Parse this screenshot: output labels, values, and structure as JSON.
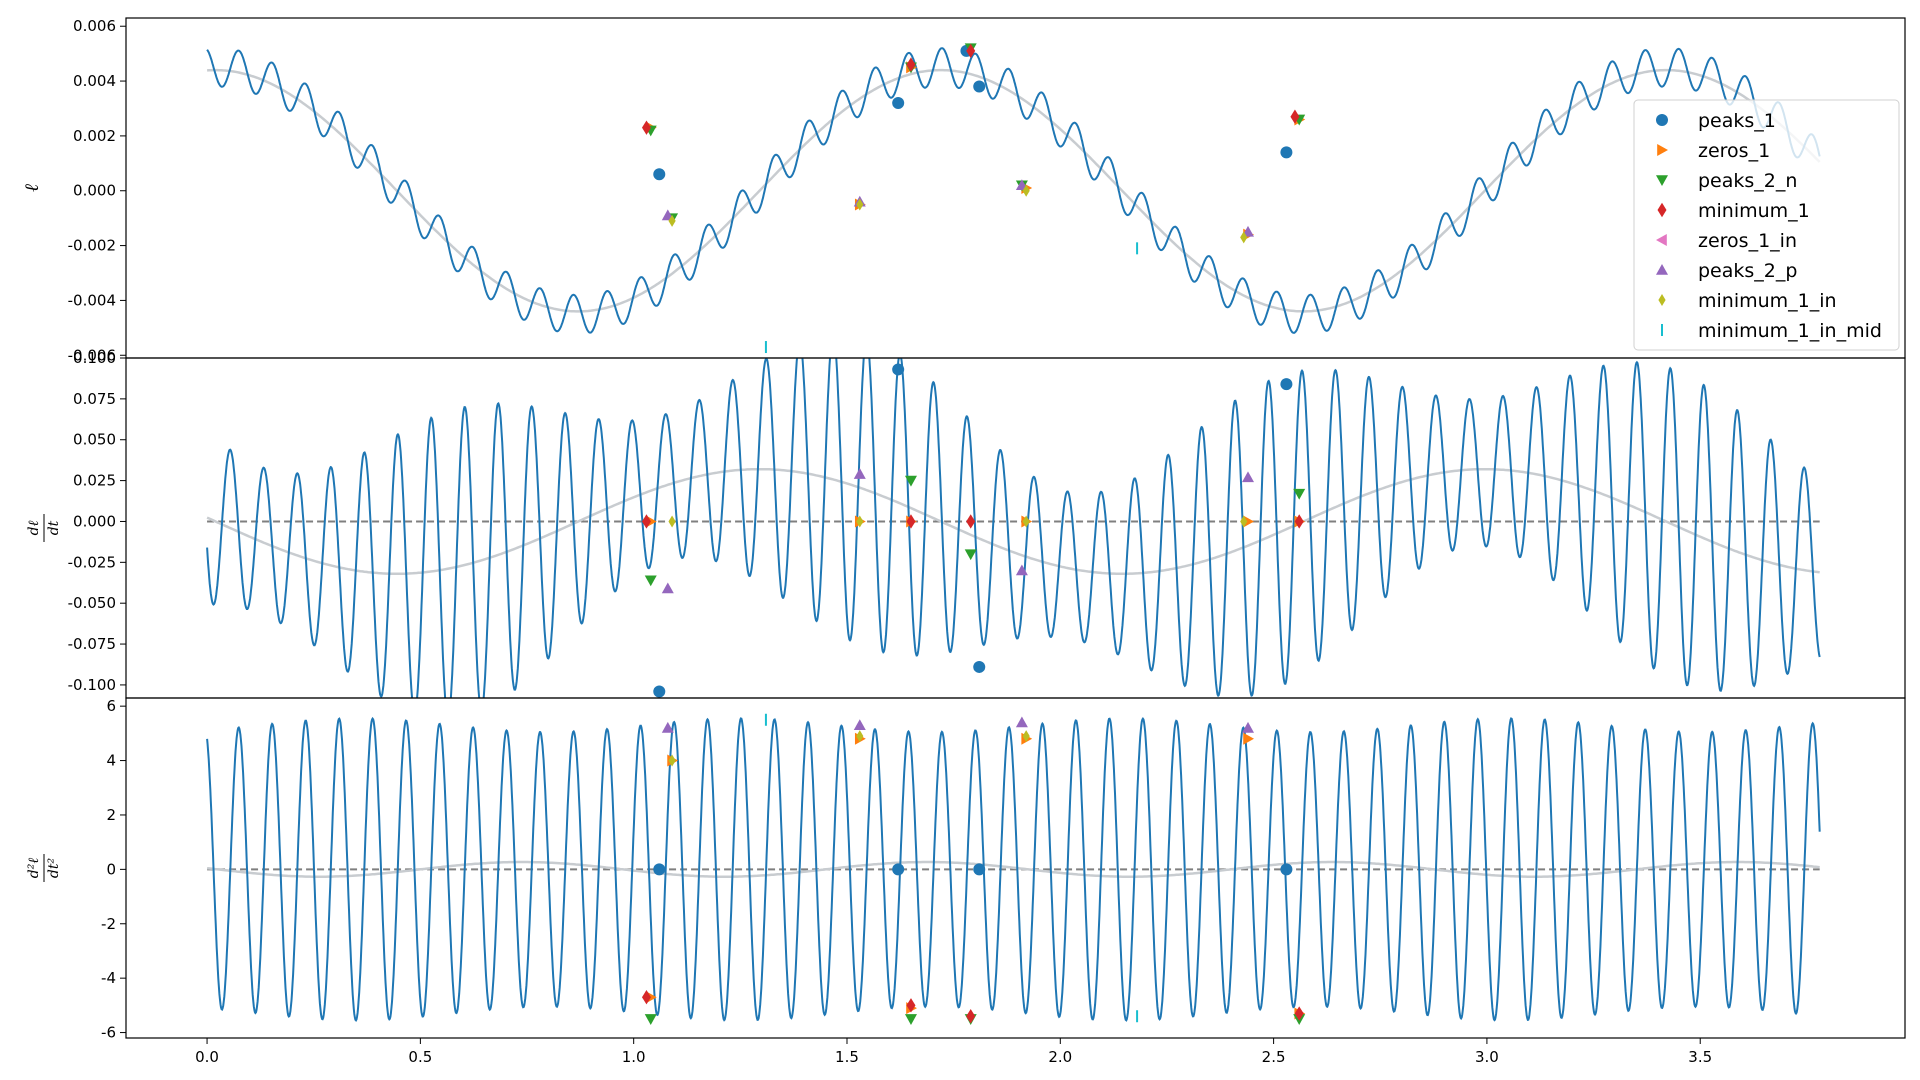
{
  "chart_data": [
    {
      "type": "line",
      "panel": "top",
      "ylabel": "ℓ",
      "xlim": [
        -0.19,
        3.98
      ],
      "ylim": [
        -0.0061,
        0.0063
      ],
      "yticks": [
        "0.006",
        "0.004",
        "0.002",
        "0.000",
        "-0.002",
        "-0.004",
        "-0.006"
      ],
      "ytick_values": [
        0.006,
        0.004,
        0.002,
        0.0,
        -0.002,
        -0.004,
        -0.006
      ],
      "series": [
        {
          "role": "signal",
          "color": "#1f77b4",
          "model": {
            "slow_amp": 0.0045,
            "slow_period": 1.7,
            "fast_amp": 0.0007,
            "fast_period": 0.0785
          }
        },
        {
          "role": "smoothed",
          "color": "#c8ccd0",
          "model": {
            "amp": 0.0044,
            "period": 1.7
          }
        }
      ],
      "markers": [
        {
          "name": "peaks_1",
          "shape": "circle",
          "color": "#1f77b4",
          "points": [
            [
              1.06,
              0.0006
            ],
            [
              1.62,
              0.0032
            ],
            [
              1.78,
              0.0051
            ],
            [
              1.81,
              0.0038
            ],
            [
              2.53,
              0.0014
            ]
          ]
        },
        {
          "name": "zeros_1",
          "shape": "triangle-right",
          "color": "#ff7f0e",
          "points": [
            [
              1.04,
              0.0023
            ],
            [
              1.53,
              -0.0005
            ],
            [
              1.65,
              0.0045
            ],
            [
              1.92,
              0.0001
            ],
            [
              2.44,
              -0.0016
            ],
            [
              2.56,
              0.0026
            ]
          ]
        },
        {
          "name": "peaks_2_n",
          "shape": "triangle-down",
          "color": "#2ca02c",
          "points": [
            [
              1.04,
              0.0022
            ],
            [
              1.09,
              -0.001
            ],
            [
              1.65,
              0.0045
            ],
            [
              1.79,
              0.0052
            ],
            [
              1.91,
              0.0002
            ],
            [
              2.56,
              0.0026
            ]
          ]
        },
        {
          "name": "minimum_1",
          "shape": "diamond",
          "color": "#d62728",
          "points": [
            [
              1.03,
              0.0023
            ],
            [
              1.65,
              0.0046
            ],
            [
              1.79,
              0.0051
            ],
            [
              2.55,
              0.0027
            ]
          ]
        },
        {
          "name": "peaks_2_p",
          "shape": "triangle-up",
          "color": "#9467bd",
          "points": [
            [
              1.08,
              -0.0009
            ],
            [
              1.53,
              -0.0004
            ],
            [
              1.91,
              0.0002
            ],
            [
              2.44,
              -0.0015
            ]
          ]
        },
        {
          "name": "minimum_1_in",
          "shape": "thin-diamond",
          "color": "#bcbd22",
          "points": [
            [
              1.09,
              -0.0011
            ],
            [
              1.53,
              -0.0005
            ],
            [
              1.92,
              0.0
            ],
            [
              2.43,
              -0.0017
            ]
          ]
        },
        {
          "name": "minimum_1_in_mid",
          "shape": "vline",
          "color": "#17becf",
          "points": [
            [
              1.31,
              -0.0057
            ],
            [
              2.18,
              -0.0021
            ]
          ]
        }
      ],
      "legend": {
        "placement": "right",
        "entries": [
          {
            "label": "peaks_1",
            "shape": "circle",
            "color": "#1f77b4"
          },
          {
            "label": "zeros_1",
            "shape": "triangle-right",
            "color": "#ff7f0e"
          },
          {
            "label": "peaks_2_n",
            "shape": "triangle-down",
            "color": "#2ca02c"
          },
          {
            "label": "minimum_1",
            "shape": "diamond",
            "color": "#d62728"
          },
          {
            "label": "zeros_1_in",
            "shape": "triangle-left",
            "color": "#e377c2"
          },
          {
            "label": "peaks_2_p",
            "shape": "triangle-up",
            "color": "#9467bd"
          },
          {
            "label": "minimum_1_in",
            "shape": "thin-diamond",
            "color": "#bcbd22"
          },
          {
            "label": "minimum_1_in_mid",
            "shape": "vline",
            "color": "#17becf"
          }
        ]
      }
    },
    {
      "type": "line",
      "panel": "middle",
      "ylabel_num": "dℓ",
      "ylabel_den": "dt",
      "xlim": [
        -0.19,
        3.98
      ],
      "ylim": [
        -0.108,
        0.1
      ],
      "yticks": [
        "0.100",
        "0.075",
        "0.050",
        "0.025",
        "0.000",
        "-0.025",
        "-0.050",
        "-0.075",
        "-0.100"
      ],
      "ytick_values": [
        0.1,
        0.075,
        0.05,
        0.025,
        0.0,
        -0.025,
        -0.05,
        -0.075,
        -0.1
      ],
      "zero_line": true,
      "series": [
        {
          "role": "signal",
          "color": "#1f77b4",
          "model": {
            "base_amp": 0.07,
            "mod_amp": 0.025,
            "fast_period": 0.0785
          }
        },
        {
          "role": "smoothed",
          "color": "#c8ccd0",
          "model": {
            "amp": 0.032,
            "period": 1.7
          }
        }
      ],
      "markers": [
        {
          "name": "peaks_1",
          "shape": "circle",
          "color": "#1f77b4",
          "points": [
            [
              1.06,
              -0.104
            ],
            [
              1.62,
              0.093
            ],
            [
              1.81,
              -0.089
            ],
            [
              2.53,
              0.084
            ]
          ]
        },
        {
          "name": "zeros_1",
          "shape": "triangle-right",
          "color": "#ff7f0e",
          "points": [
            [
              1.04,
              0.0
            ],
            [
              1.53,
              0.0
            ],
            [
              1.65,
              0.0
            ],
            [
              1.92,
              0.0
            ],
            [
              2.44,
              0.0
            ],
            [
              2.56,
              0.0
            ]
          ]
        },
        {
          "name": "peaks_2_n",
          "shape": "triangle-down",
          "color": "#2ca02c",
          "points": [
            [
              1.04,
              -0.036
            ],
            [
              1.65,
              0.025
            ],
            [
              1.79,
              -0.02
            ],
            [
              2.56,
              0.017
            ]
          ]
        },
        {
          "name": "minimum_1",
          "shape": "diamond",
          "color": "#d62728",
          "points": [
            [
              1.03,
              0.0
            ],
            [
              1.65,
              0.0
            ],
            [
              1.79,
              0.0
            ],
            [
              2.56,
              0.0
            ]
          ]
        },
        {
          "name": "peaks_2_p",
          "shape": "triangle-up",
          "color": "#9467bd",
          "points": [
            [
              1.08,
              -0.041
            ],
            [
              1.53,
              0.029
            ],
            [
              1.91,
              -0.03
            ],
            [
              2.44,
              0.027
            ]
          ]
        },
        {
          "name": "minimum_1_in",
          "shape": "thin-diamond",
          "color": "#bcbd22",
          "points": [
            [
              1.09,
              0.0
            ],
            [
              1.53,
              0.0
            ],
            [
              1.92,
              0.0
            ],
            [
              2.43,
              0.0
            ]
          ]
        }
      ]
    },
    {
      "type": "line",
      "panel": "bottom",
      "ylabel_num": "d²ℓ",
      "ylabel_den": "dt²",
      "xlim": [
        -0.19,
        3.98
      ],
      "ylim": [
        -6.2,
        6.3
      ],
      "yticks": [
        "6",
        "4",
        "2",
        "0",
        "-2",
        "-4",
        "-6"
      ],
      "ytick_values": [
        6,
        4,
        2,
        0,
        -2,
        -4,
        -6
      ],
      "xticks": [
        "0.0",
        "0.5",
        "1.0",
        "1.5",
        "2.0",
        "2.5",
        "3.0",
        "3.5"
      ],
      "xtick_values": [
        0.0,
        0.5,
        1.0,
        1.5,
        2.0,
        2.5,
        3.0,
        3.5
      ],
      "zero_line": true,
      "series": [
        {
          "role": "signal",
          "color": "#1f77b4",
          "model": {
            "base_amp": 5.3,
            "mod_amp": 0.25,
            "fast_period": 0.0785
          }
        },
        {
          "role": "smoothed",
          "color": "#c8ccd0",
          "model": {
            "amp": 0.3,
            "period": 1.7
          }
        }
      ],
      "markers": [
        {
          "name": "peaks_1",
          "shape": "circle",
          "color": "#1f77b4",
          "points": [
            [
              1.06,
              0.0
            ],
            [
              1.62,
              0.0
            ],
            [
              1.81,
              0.0
            ],
            [
              2.53,
              0.0
            ]
          ]
        },
        {
          "name": "zeros_1",
          "shape": "triangle-right",
          "color": "#ff7f0e",
          "points": [
            [
              1.04,
              -4.7
            ],
            [
              1.09,
              4.0
            ],
            [
              1.53,
              4.8
            ],
            [
              1.65,
              -5.1
            ],
            [
              1.92,
              4.8
            ],
            [
              2.44,
              4.8
            ],
            [
              2.56,
              -5.3
            ]
          ]
        },
        {
          "name": "peaks_2_n",
          "shape": "triangle-down",
          "color": "#2ca02c",
          "points": [
            [
              1.04,
              -5.5
            ],
            [
              1.65,
              -5.5
            ],
            [
              1.79,
              -5.5
            ],
            [
              2.56,
              -5.5
            ]
          ]
        },
        {
          "name": "minimum_1",
          "shape": "diamond",
          "color": "#d62728",
          "points": [
            [
              1.03,
              -4.7
            ],
            [
              1.65,
              -5.0
            ],
            [
              1.79,
              -5.4
            ],
            [
              2.56,
              -5.3
            ]
          ]
        },
        {
          "name": "peaks_2_p",
          "shape": "triangle-up",
          "color": "#9467bd",
          "points": [
            [
              1.08,
              5.2
            ],
            [
              1.53,
              5.3
            ],
            [
              1.91,
              5.4
            ],
            [
              2.44,
              5.2
            ]
          ]
        },
        {
          "name": "minimum_1_in",
          "shape": "thin-diamond",
          "color": "#bcbd22",
          "points": [
            [
              1.09,
              4.0
            ],
            [
              1.53,
              4.9
            ],
            [
              1.92,
              4.9
            ]
          ]
        },
        {
          "name": "minimum_1_in_mid",
          "shape": "vline",
          "color": "#17becf",
          "points": [
            [
              1.31,
              5.5
            ],
            [
              2.18,
              -5.4
            ]
          ]
        }
      ]
    }
  ]
}
